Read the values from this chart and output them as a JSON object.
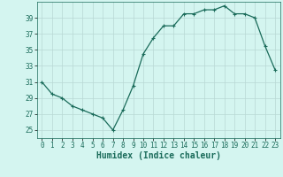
{
  "x": [
    0,
    1,
    2,
    3,
    4,
    5,
    6,
    7,
    8,
    9,
    10,
    11,
    12,
    13,
    14,
    15,
    16,
    17,
    18,
    19,
    20,
    21,
    22,
    23
  ],
  "y": [
    31,
    29.5,
    29,
    28,
    27.5,
    27,
    26.5,
    25,
    27.5,
    30.5,
    34.5,
    36.5,
    38,
    38,
    39.5,
    39.5,
    40,
    40,
    40.5,
    39.5,
    39.5,
    39,
    35.5,
    32.5
  ],
  "line_color": "#1a6b5a",
  "marker": "+",
  "marker_size": 3.0,
  "bg_color": "#d4f5f0",
  "grid_color": "#b8d8d4",
  "xlabel": "Humidex (Indice chaleur)",
  "ylim": [
    24,
    41
  ],
  "xlim": [
    -0.5,
    23.5
  ],
  "yticks": [
    25,
    27,
    29,
    31,
    33,
    35,
    37,
    39
  ],
  "xticks": [
    0,
    1,
    2,
    3,
    4,
    5,
    6,
    7,
    8,
    9,
    10,
    11,
    12,
    13,
    14,
    15,
    16,
    17,
    18,
    19,
    20,
    21,
    22,
    23
  ],
  "tick_label_fontsize": 5.5,
  "xlabel_fontsize": 7.0,
  "linewidth": 0.9,
  "marker_linewidth": 0.8
}
